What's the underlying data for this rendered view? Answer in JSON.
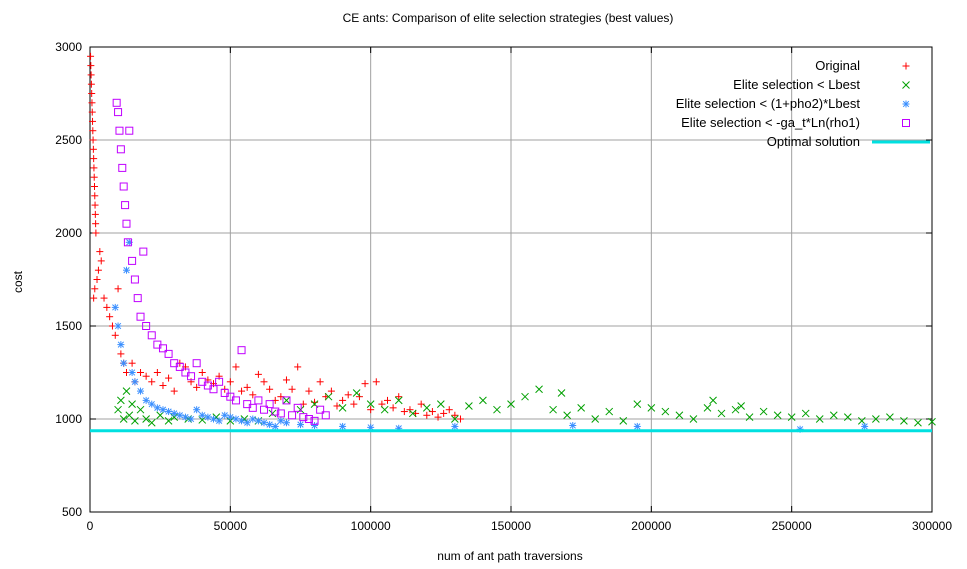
{
  "chart_data": {
    "type": "scatter",
    "title": "CE ants: Comparison of elite selection strategies (best values)",
    "xlabel": "num of ant path traversions",
    "ylabel": "cost",
    "xlim": [
      0,
      300000
    ],
    "ylim": [
      500,
      3000
    ],
    "x_ticks": [
      0,
      50000,
      100000,
      150000,
      200000,
      250000,
      300000
    ],
    "y_ticks": [
      500,
      1000,
      1500,
      2000,
      2500,
      3000
    ],
    "grid": true,
    "legend_position": "top-right",
    "series": [
      {
        "name": "Original",
        "marker": "plus",
        "color": "#ff0000",
        "points": [
          [
            200,
            2950
          ],
          [
            300,
            2900
          ],
          [
            400,
            2850
          ],
          [
            500,
            2800
          ],
          [
            600,
            2750
          ],
          [
            700,
            2700
          ],
          [
            800,
            2650
          ],
          [
            900,
            2600
          ],
          [
            1000,
            2550
          ],
          [
            1100,
            2500
          ],
          [
            1200,
            2450
          ],
          [
            1300,
            2400
          ],
          [
            1400,
            2350
          ],
          [
            1500,
            2300
          ],
          [
            1600,
            2250
          ],
          [
            1700,
            2200
          ],
          [
            1800,
            2150
          ],
          [
            1900,
            2100
          ],
          [
            2000,
            2050
          ],
          [
            2100,
            2000
          ],
          [
            1300,
            1650
          ],
          [
            1700,
            1700
          ],
          [
            2500,
            1750
          ],
          [
            3000,
            1800
          ],
          [
            4000,
            1850
          ],
          [
            3500,
            1900
          ],
          [
            5000,
            1650
          ],
          [
            6000,
            1600
          ],
          [
            7000,
            1550
          ],
          [
            8000,
            1500
          ],
          [
            9000,
            1450
          ],
          [
            10000,
            1700
          ],
          [
            11000,
            1350
          ],
          [
            12000,
            1300
          ],
          [
            13000,
            1250
          ],
          [
            15000,
            1300
          ],
          [
            16000,
            1200
          ],
          [
            18000,
            1250
          ],
          [
            20000,
            1230
          ],
          [
            22000,
            1200
          ],
          [
            24000,
            1250
          ],
          [
            26000,
            1180
          ],
          [
            28000,
            1220
          ],
          [
            30000,
            1150
          ],
          [
            32000,
            1300
          ],
          [
            34000,
            1280
          ],
          [
            36000,
            1200
          ],
          [
            38000,
            1170
          ],
          [
            40000,
            1250
          ],
          [
            42000,
            1210
          ],
          [
            44000,
            1190
          ],
          [
            46000,
            1230
          ],
          [
            48000,
            1160
          ],
          [
            50000,
            1200
          ],
          [
            52000,
            1280
          ],
          [
            54000,
            1150
          ],
          [
            56000,
            1170
          ],
          [
            58000,
            1130
          ],
          [
            60000,
            1240
          ],
          [
            62000,
            1200
          ],
          [
            64000,
            1160
          ],
          [
            66000,
            1100
          ],
          [
            68000,
            1120
          ],
          [
            70000,
            1210
          ],
          [
            72000,
            1160
          ],
          [
            74000,
            1280
          ],
          [
            76000,
            1080
          ],
          [
            78000,
            1150
          ],
          [
            80000,
            1090
          ],
          [
            82000,
            1200
          ],
          [
            84000,
            1120
          ],
          [
            86000,
            1150
          ],
          [
            88000,
            1070
          ],
          [
            90000,
            1100
          ],
          [
            92000,
            1130
          ],
          [
            94000,
            1080
          ],
          [
            96000,
            1120
          ],
          [
            98000,
            1190
          ],
          [
            100000,
            1050
          ],
          [
            102000,
            1200
          ],
          [
            104000,
            1080
          ],
          [
            106000,
            1100
          ],
          [
            108000,
            1060
          ],
          [
            110000,
            1120
          ],
          [
            112000,
            1040
          ],
          [
            114000,
            1050
          ],
          [
            116000,
            1030
          ],
          [
            118000,
            1080
          ],
          [
            120000,
            1020
          ],
          [
            122000,
            1040
          ],
          [
            124000,
            1010
          ],
          [
            126000,
            1030
          ],
          [
            128000,
            1050
          ],
          [
            130000,
            1020
          ],
          [
            132000,
            1000
          ]
        ]
      },
      {
        "name": "Elite selection < Lbest",
        "marker": "cross",
        "color": "#00a000",
        "points": [
          [
            10000,
            1050
          ],
          [
            11000,
            1100
          ],
          [
            12000,
            1000
          ],
          [
            13000,
            1150
          ],
          [
            14000,
            1020
          ],
          [
            15000,
            1080
          ],
          [
            16000,
            990
          ],
          [
            18000,
            1050
          ],
          [
            20000,
            1000
          ],
          [
            22000,
            980
          ],
          [
            25000,
            1020
          ],
          [
            28000,
            990
          ],
          [
            30000,
            1010
          ],
          [
            35000,
            1000
          ],
          [
            40000,
            995
          ],
          [
            45000,
            1010
          ],
          [
            50000,
            990
          ],
          [
            55000,
            1000
          ],
          [
            60000,
            990
          ],
          [
            65000,
            1030
          ],
          [
            70000,
            1100
          ],
          [
            75000,
            1050
          ],
          [
            80000,
            1080
          ],
          [
            85000,
            1120
          ],
          [
            90000,
            1060
          ],
          [
            95000,
            1140
          ],
          [
            100000,
            1080
          ],
          [
            105000,
            1050
          ],
          [
            110000,
            1100
          ],
          [
            115000,
            1030
          ],
          [
            120000,
            1060
          ],
          [
            125000,
            1080
          ],
          [
            130000,
            1000
          ],
          [
            135000,
            1070
          ],
          [
            140000,
            1100
          ],
          [
            145000,
            1050
          ],
          [
            150000,
            1080
          ],
          [
            155000,
            1120
          ],
          [
            160000,
            1160
          ],
          [
            165000,
            1050
          ],
          [
            170000,
            1020
          ],
          [
            175000,
            1060
          ],
          [
            180000,
            1000
          ],
          [
            185000,
            1040
          ],
          [
            190000,
            990
          ],
          [
            195000,
            1080
          ],
          [
            200000,
            1060
          ],
          [
            205000,
            1040
          ],
          [
            210000,
            1020
          ],
          [
            215000,
            1000
          ],
          [
            220000,
            1060
          ],
          [
            225000,
            1030
          ],
          [
            230000,
            1050
          ],
          [
            235000,
            1010
          ],
          [
            240000,
            1040
          ],
          [
            245000,
            1020
          ],
          [
            250000,
            1010
          ],
          [
            255000,
            1030
          ],
          [
            260000,
            1000
          ],
          [
            265000,
            1020
          ],
          [
            270000,
            1010
          ],
          [
            275000,
            990
          ],
          [
            280000,
            1000
          ],
          [
            285000,
            1010
          ],
          [
            290000,
            990
          ],
          [
            295000,
            980
          ],
          [
            300000,
            985
          ],
          [
            222000,
            1100
          ],
          [
            232000,
            1070
          ],
          [
            168000,
            1140
          ]
        ]
      },
      {
        "name": "Elite selection < (1+pho2)*Lbest",
        "marker": "star",
        "color": "#3a8fff",
        "points": [
          [
            9000,
            1600
          ],
          [
            10000,
            1500
          ],
          [
            11000,
            1400
          ],
          [
            12000,
            1300
          ],
          [
            13000,
            1800
          ],
          [
            14000,
            1950
          ],
          [
            15000,
            1250
          ],
          [
            16000,
            1200
          ],
          [
            18000,
            1150
          ],
          [
            20000,
            1100
          ],
          [
            22000,
            1080
          ],
          [
            24000,
            1060
          ],
          [
            26000,
            1050
          ],
          [
            28000,
            1040
          ],
          [
            30000,
            1030
          ],
          [
            32000,
            1020
          ],
          [
            34000,
            1010
          ],
          [
            36000,
            1000
          ],
          [
            38000,
            1050
          ],
          [
            40000,
            1020
          ],
          [
            42000,
            1010
          ],
          [
            44000,
            1000
          ],
          [
            46000,
            990
          ],
          [
            48000,
            1020
          ],
          [
            50000,
            1010
          ],
          [
            52000,
            1000
          ],
          [
            54000,
            990
          ],
          [
            56000,
            980
          ],
          [
            58000,
            1000
          ],
          [
            60000,
            990
          ],
          [
            62000,
            980
          ],
          [
            64000,
            970
          ],
          [
            66000,
            960
          ],
          [
            68000,
            990
          ],
          [
            70000,
            980
          ],
          [
            75000,
            970
          ],
          [
            80000,
            965
          ],
          [
            90000,
            960
          ],
          [
            100000,
            955
          ],
          [
            110000,
            950
          ],
          [
            130000,
            960
          ],
          [
            172000,
            965
          ],
          [
            195000,
            960
          ],
          [
            253000,
            945
          ],
          [
            276000,
            960
          ]
        ]
      },
      {
        "name": "Elite selection < -ga_t*Ln(rho1)",
        "marker": "square",
        "color": "#c000ff",
        "points": [
          [
            9500,
            2700
          ],
          [
            10000,
            2650
          ],
          [
            10500,
            2550
          ],
          [
            11000,
            2450
          ],
          [
            11500,
            2350
          ],
          [
            12000,
            2250
          ],
          [
            12500,
            2150
          ],
          [
            13000,
            2050
          ],
          [
            13500,
            1950
          ],
          [
            14000,
            2550
          ],
          [
            15000,
            1850
          ],
          [
            16000,
            1750
          ],
          [
            17000,
            1650
          ],
          [
            18000,
            1550
          ],
          [
            19000,
            1900
          ],
          [
            20000,
            1500
          ],
          [
            22000,
            1450
          ],
          [
            24000,
            1400
          ],
          [
            26000,
            1380
          ],
          [
            28000,
            1350
          ],
          [
            30000,
            1300
          ],
          [
            32000,
            1280
          ],
          [
            34000,
            1250
          ],
          [
            36000,
            1230
          ],
          [
            38000,
            1300
          ],
          [
            40000,
            1200
          ],
          [
            42000,
            1180
          ],
          [
            44000,
            1160
          ],
          [
            46000,
            1200
          ],
          [
            48000,
            1140
          ],
          [
            50000,
            1120
          ],
          [
            52000,
            1100
          ],
          [
            54000,
            1370
          ],
          [
            56000,
            1080
          ],
          [
            58000,
            1060
          ],
          [
            60000,
            1100
          ],
          [
            62000,
            1050
          ],
          [
            64000,
            1080
          ],
          [
            66000,
            1040
          ],
          [
            68000,
            1030
          ],
          [
            70000,
            1100
          ],
          [
            72000,
            1020
          ],
          [
            74000,
            1060
          ],
          [
            76000,
            1010
          ],
          [
            78000,
            1000
          ],
          [
            80000,
            990
          ],
          [
            82000,
            1050
          ],
          [
            84000,
            1020
          ]
        ]
      },
      {
        "name": "Optimal solution",
        "marker": "line",
        "color": "#00e0e0",
        "y": 937
      }
    ]
  }
}
